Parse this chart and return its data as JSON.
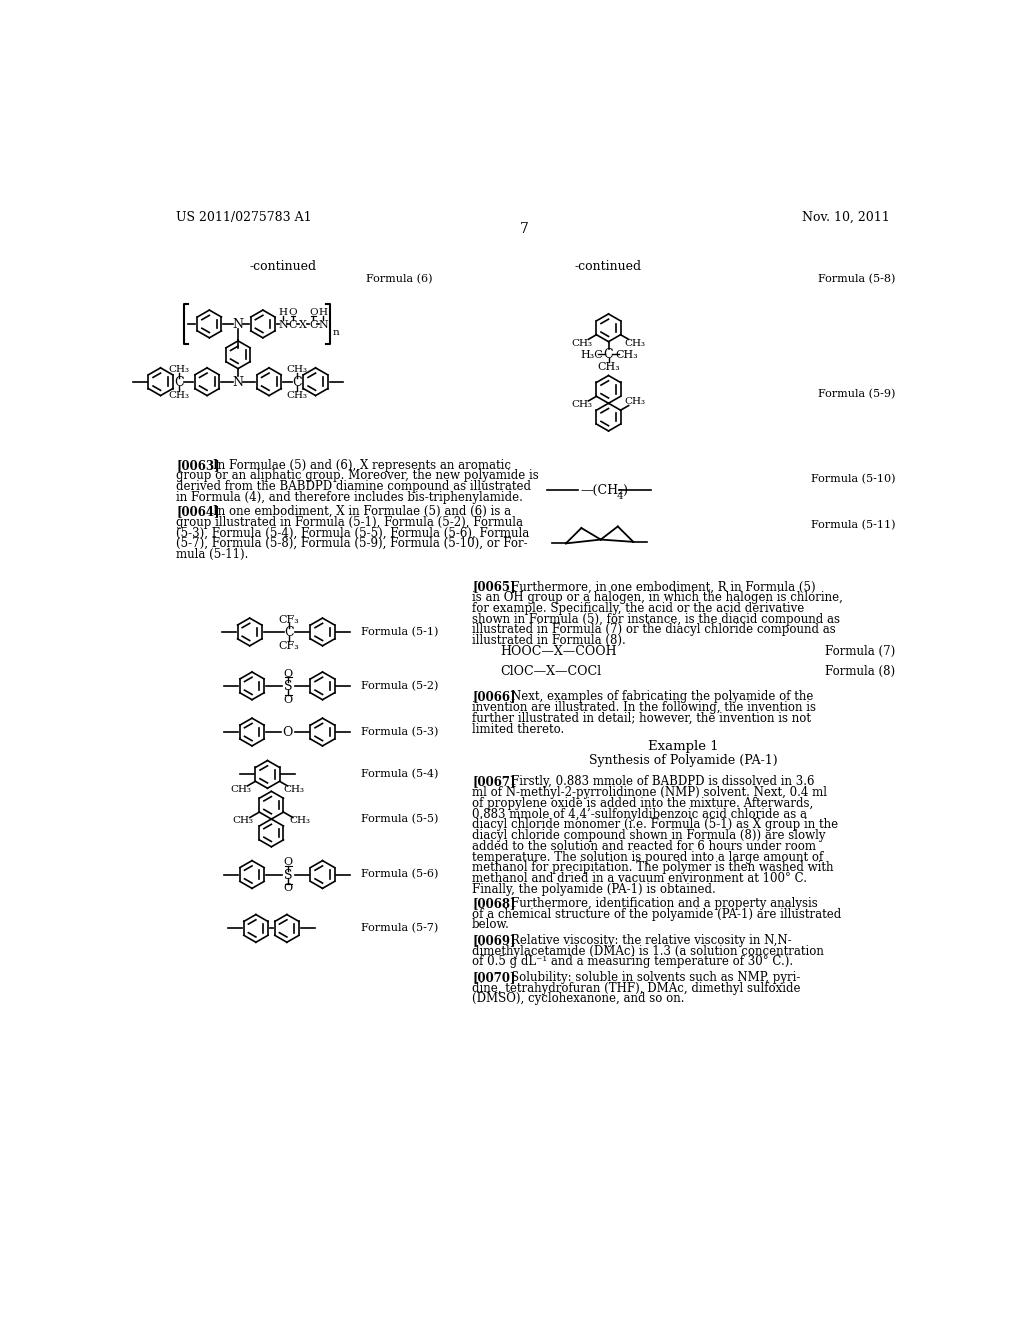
{
  "page_number": "7",
  "patent_number": "US 2011/0275783 A1",
  "patent_date": "Nov. 10, 2011",
  "bg": "#ffffff"
}
